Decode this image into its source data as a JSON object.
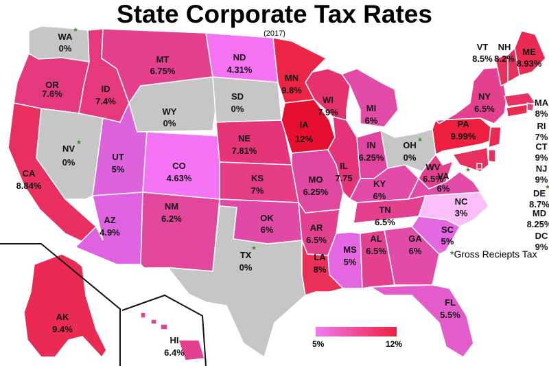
{
  "title": "State Corporate Tax Rates",
  "subtitle": "(2017)",
  "legend": {
    "min_label": "5%",
    "max_label": "12%",
    "min_color": "#f07af0",
    "max_color": "#ee1f3f"
  },
  "gross_note": {
    "star": "*",
    "text": "Gross Reciepts Tax"
  },
  "colors": {
    "gray": "#c6c6c6",
    "border": "#ffffff",
    "star": "#3a8a2c"
  },
  "states": [
    {
      "abbr": "WA",
      "rate": "0%",
      "color": "#c6c6c6",
      "gross": true
    },
    {
      "abbr": "OR",
      "rate": "7.6%",
      "color": "#e4397f"
    },
    {
      "abbr": "CA",
      "rate": "8.84%",
      "color": "#e92e60"
    },
    {
      "abbr": "NV",
      "rate": "0%",
      "color": "#c6c6c6",
      "gross": true
    },
    {
      "abbr": "ID",
      "rate": "7.4%",
      "color": "#e5397c"
    },
    {
      "abbr": "MT",
      "rate": "6.75%",
      "color": "#e5408e"
    },
    {
      "abbr": "WY",
      "rate": "0%",
      "color": "#c6c6c6"
    },
    {
      "abbr": "UT",
      "rate": "5%",
      "color": "#dd63dd"
    },
    {
      "abbr": "AZ",
      "rate": "4.9%",
      "color": "#df62e0"
    },
    {
      "abbr": "CO",
      "rate": "4.63%",
      "color": "#f574f5"
    },
    {
      "abbr": "NM",
      "rate": "6.2%",
      "color": "#e2479b"
    },
    {
      "abbr": "ND",
      "rate": "4.31%",
      "color": "#f573f2"
    },
    {
      "abbr": "SD",
      "rate": "0%",
      "color": "#c6c6c6"
    },
    {
      "abbr": "NE",
      "rate": "7.81%",
      "color": "#e53477"
    },
    {
      "abbr": "KS",
      "rate": "7%",
      "color": "#e53d86"
    },
    {
      "abbr": "OK",
      "rate": "6%",
      "color": "#e04aa6"
    },
    {
      "abbr": "TX",
      "rate": "0%",
      "color": "#c6c6c6",
      "gross": true
    },
    {
      "abbr": "MN",
      "rate": "9.8%",
      "color": "#ec2546"
    },
    {
      "abbr": "IA",
      "rate": "12%",
      "color": "#e60f2f"
    },
    {
      "abbr": "MO",
      "rate": "6.25%",
      "color": "#e0479f"
    },
    {
      "abbr": "AR",
      "rate": "6.5%",
      "color": "#e3418f"
    },
    {
      "abbr": "LA",
      "rate": "8%",
      "color": "#ea3059"
    },
    {
      "abbr": "WI",
      "rate": "7.9%",
      "color": "#e5326f"
    },
    {
      "abbr": "IL",
      "rate": "7.75",
      "color": "#e5347b"
    },
    {
      "abbr": "MS",
      "rate": "5%",
      "color": "#e466e0"
    },
    {
      "abbr": "MI",
      "rate": "6%",
      "color": "#e24ca8"
    },
    {
      "abbr": "IN",
      "rate": "6.25%",
      "color": "#e046a0"
    },
    {
      "abbr": "KY",
      "rate": "6%",
      "color": "#e24ca8"
    },
    {
      "abbr": "TN",
      "rate": "6.5%",
      "color": "#e34190"
    },
    {
      "abbr": "AL",
      "rate": "6.5%",
      "color": "#e34190"
    },
    {
      "abbr": "GA",
      "rate": "6%",
      "color": "#e24ca8"
    },
    {
      "abbr": "FL",
      "rate": "5.5%",
      "color": "#e45ccc"
    },
    {
      "abbr": "OH",
      "rate": "0%",
      "color": "#c6c6c6",
      "gross": true
    },
    {
      "abbr": "WV",
      "rate": "6.5%",
      "color": "#e3418f"
    },
    {
      "abbr": "VA",
      "rate": "6%",
      "color": "#e24ca8",
      "gross": true
    },
    {
      "abbr": "NC",
      "rate": "3%",
      "color": "#fbbef7"
    },
    {
      "abbr": "SC",
      "rate": "5%",
      "color": "#e466e0"
    },
    {
      "abbr": "PA",
      "rate": "9.99%",
      "color": "#ec1f3e"
    },
    {
      "abbr": "NY",
      "rate": "6.5%",
      "color": "#e3418f"
    },
    {
      "abbr": "VT",
      "rate": "8.5%",
      "color": "#e8305e"
    },
    {
      "abbr": "NH",
      "rate": "8.2%",
      "color": "#e8305e"
    },
    {
      "abbr": "ME",
      "rate": "8.93%",
      "color": "#ea2a52"
    },
    {
      "abbr": "MA",
      "rate": "8%",
      "color": "#e83262"
    },
    {
      "abbr": "RI",
      "rate": "7%",
      "color": "#e53d86"
    },
    {
      "abbr": "CT",
      "rate": "9%",
      "color": "#ea2a52"
    },
    {
      "abbr": "NJ",
      "rate": "9%",
      "color": "#ea2a52"
    },
    {
      "abbr": "DE",
      "rate": "8.7%",
      "color": "#e8305e",
      "gross": true
    },
    {
      "abbr": "MD",
      "rate": "8.25%",
      "color": "#e8305e"
    },
    {
      "abbr": "DC",
      "rate": "9%",
      "color": "#ea2a52"
    },
    {
      "abbr": "AK",
      "rate": "9.4%",
      "color": "#ea2a52"
    },
    {
      "abbr": "HI",
      "rate": "6.4%",
      "color": "#e3418f"
    }
  ]
}
